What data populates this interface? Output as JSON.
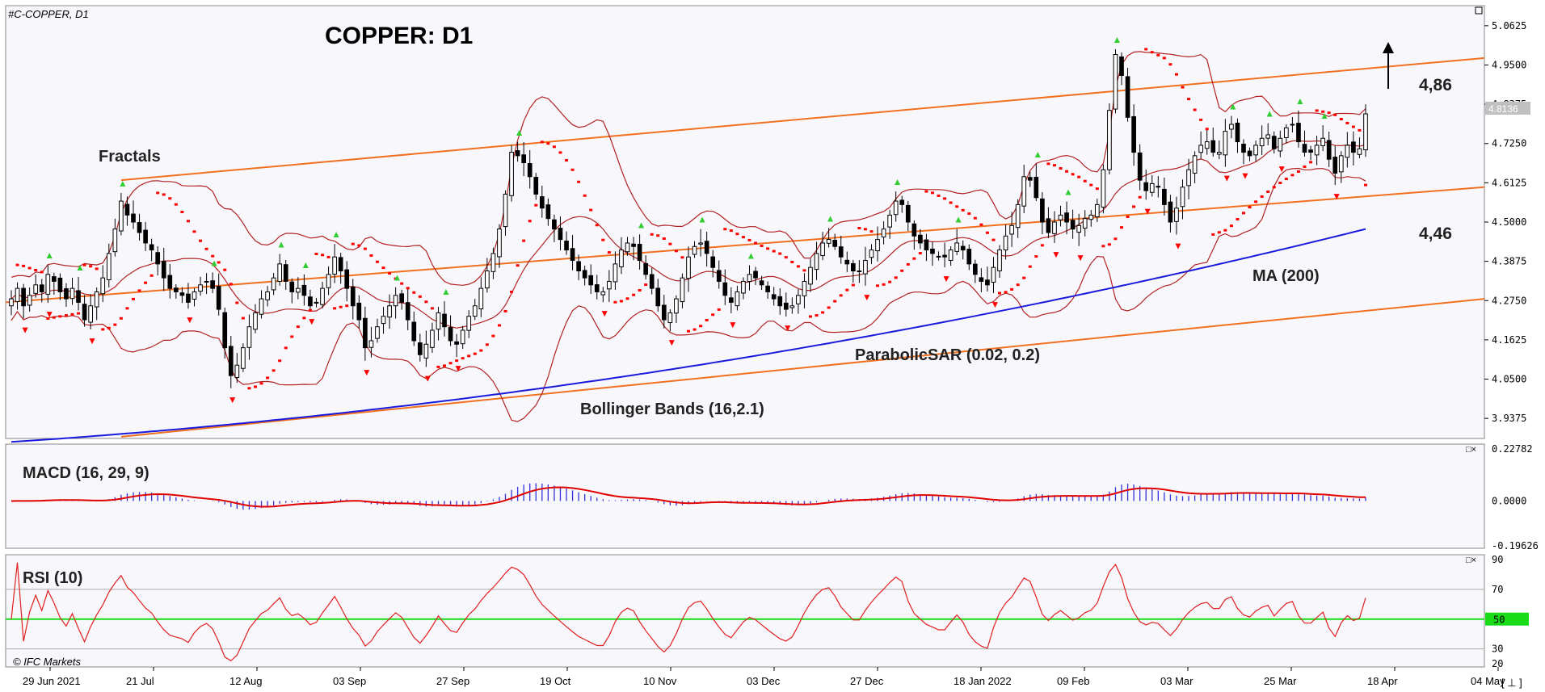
{
  "header": {
    "symbol_label": "#C-COPPER, D1",
    "title": "COPPER: D1",
    "copyright": "© IFC Markets"
  },
  "annotations": {
    "fractals": "Fractals",
    "bollinger": "Bollinger Bands (16,2.1)",
    "parabolic": "ParabolicSAR (0.02, 0.2)",
    "ma": "MA (200)",
    "level_high": "4,86",
    "level_low": "4,46",
    "current_price": "4.8136"
  },
  "price_axis": {
    "ticks": [
      "5.0625",
      "4.9500",
      "4.8375",
      "4.7250",
      "4.6125",
      "4.5000",
      "4.3875",
      "4.2750",
      "4.1625",
      "4.0500",
      "3.9375"
    ]
  },
  "macd_panel": {
    "label": "MACD (16, 29, 9)",
    "ticks": [
      "0.22782",
      "0.0000",
      "-0.19626"
    ]
  },
  "rsi_panel": {
    "label": "RSI (10)",
    "ticks": [
      "90",
      "70",
      "50",
      "30",
      "20"
    ]
  },
  "time_axis": {
    "labels": [
      "29 Jun 2021",
      "21 Jul",
      "12 Aug",
      "03 Sep",
      "27 Sep",
      "19 Oct",
      "10 Nov",
      "03 Dec",
      "27 Dec",
      "18 Jan 2022",
      "09 Feb",
      "03 Mar",
      "25 Mar",
      "18 Apr",
      "04 May"
    ],
    "corner": "[ ⊥ ]"
  },
  "colors": {
    "background": "#ffffff",
    "plot_bg": "#f8f8fc",
    "channel": "#f07020",
    "ma": "#1a1adc",
    "bollinger": "#b22222",
    "sar": "#ff0000",
    "fractal_up": "#32cd32",
    "fractal_down": "#ff0000",
    "macd_hist": "#3232d8",
    "signal": "#e00000",
    "rsi": "#e01e1e",
    "rsi_mid": "#19dc19",
    "current_price_bg": "#c0c0c0"
  },
  "chart_data": {
    "type": "candlestick",
    "timeframe": "D1",
    "instrument": "#C-COPPER",
    "x_range": [
      "29 Jun 2021",
      "04 May 2022"
    ],
    "ylim": [
      3.88,
      5.12
    ],
    "closes": [
      4.28,
      4.31,
      4.26,
      4.29,
      4.32,
      4.3,
      4.35,
      4.33,
      4.3,
      4.28,
      4.31,
      4.27,
      4.22,
      4.26,
      4.3,
      4.34,
      4.41,
      4.48,
      4.56,
      4.52,
      4.5,
      4.47,
      4.44,
      4.42,
      4.38,
      4.34,
      4.31,
      4.3,
      4.29,
      4.27,
      4.3,
      4.32,
      4.33,
      4.31,
      4.25,
      4.14,
      4.06,
      4.09,
      4.14,
      4.2,
      4.24,
      4.28,
      4.3,
      4.34,
      4.38,
      4.33,
      4.3,
      4.31,
      4.29,
      4.26,
      4.27,
      4.31,
      4.35,
      4.4,
      4.36,
      4.31,
      4.26,
      4.22,
      4.14,
      4.16,
      4.2,
      4.23,
      4.26,
      4.29,
      4.27,
      4.22,
      4.16,
      4.12,
      4.15,
      4.19,
      4.24,
      4.2,
      4.16,
      4.15,
      4.19,
      4.23,
      4.26,
      4.31,
      4.36,
      4.41,
      4.48,
      4.58,
      4.7,
      4.69,
      4.67,
      4.63,
      4.58,
      4.54,
      4.51,
      4.48,
      4.45,
      4.42,
      4.39,
      4.36,
      4.34,
      4.32,
      4.3,
      4.3,
      4.33,
      4.38,
      4.42,
      4.44,
      4.43,
      4.39,
      4.35,
      4.31,
      4.26,
      4.22,
      4.24,
      4.28,
      4.34,
      4.4,
      4.43,
      4.44,
      4.41,
      4.37,
      4.33,
      4.29,
      4.27,
      4.3,
      4.33,
      4.35,
      4.34,
      4.32,
      4.3,
      4.28,
      4.26,
      4.25,
      4.26,
      4.29,
      4.33,
      4.37,
      4.41,
      4.44,
      4.45,
      4.43,
      4.4,
      4.38,
      4.36,
      4.36,
      4.39,
      4.42,
      4.45,
      4.48,
      4.52,
      4.56,
      4.55,
      4.5,
      4.46,
      4.44,
      4.42,
      4.41,
      4.4,
      4.4,
      4.42,
      4.44,
      4.42,
      4.38,
      4.35,
      4.33,
      4.32,
      4.37,
      4.42,
      4.46,
      4.49,
      4.55,
      4.63,
      4.62,
      4.57,
      4.5,
      4.47,
      4.5,
      4.52,
      4.5,
      4.48,
      4.49,
      4.51,
      4.52,
      4.55,
      4.65,
      4.82,
      4.98,
      4.92,
      4.8,
      4.7,
      4.62,
      4.59,
      4.61,
      4.6,
      4.55,
      4.5,
      4.54,
      4.6,
      4.65,
      4.69,
      4.72,
      4.73,
      4.7,
      4.7,
      4.76,
      4.78,
      4.73,
      4.7,
      4.69,
      4.72,
      4.74,
      4.75,
      4.71,
      4.74,
      4.77,
      4.78,
      4.73,
      4.7,
      4.7,
      4.72,
      4.74,
      4.68,
      4.64,
      4.69,
      4.72,
      4.7,
      4.71,
      4.81
    ],
    "ma200_range": [
      3.87,
      4.48
    ],
    "sar_start": 4.38,
    "series": [
      {
        "name": "MACD (16, 29, 9)",
        "ylim": [
          -0.19626,
          0.22782
        ]
      },
      {
        "name": "RSI (10)",
        "ylim": [
          20,
          90
        ],
        "levels": [
          30,
          50,
          70
        ]
      }
    ],
    "grid": false
  }
}
